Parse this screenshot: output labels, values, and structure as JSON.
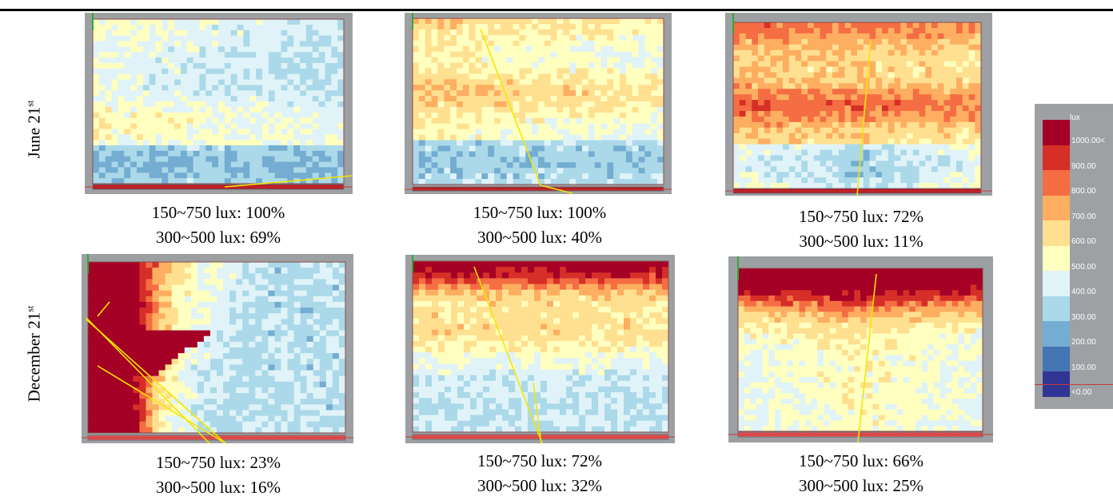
{
  "row_labels": [
    {
      "main": "June 21",
      "sup": "st"
    },
    {
      "main": "December 21",
      "sup": "st"
    }
  ],
  "legend": {
    "unit": "lux",
    "labels": [
      "1000.00<",
      "900.00",
      "800.00",
      "700.00",
      "600.00",
      "500.00",
      "400.00",
      "300.00",
      "200.00",
      "100.00",
      "<0.00"
    ],
    "colors": [
      "#a50026",
      "#d62f27",
      "#f46d43",
      "#fdae61",
      "#fee090",
      "#ffffbf",
      "#e0f3f8",
      "#abd9e9",
      "#74add1",
      "#4575b4",
      "#313695"
    ]
  },
  "chart_data": [
    {
      "type": "heatmap",
      "row": "June 21st",
      "range_150_750": "150~750 lux: 100%",
      "range_300_500": "300~500 lux: 69%"
    },
    {
      "type": "heatmap",
      "row": "June 21st",
      "range_150_750": "150~750 lux: 100%",
      "range_300_500": "300~500 lux: 40%"
    },
    {
      "type": "heatmap",
      "row": "June 21st",
      "range_150_750": "150~750 lux: 72%",
      "range_300_500": "300~500 lux: 11%"
    },
    {
      "type": "heatmap",
      "row": "December 21st",
      "range_150_750": "150~750 lux: 23%",
      "range_300_500": "300~500 lux: 16%"
    },
    {
      "type": "heatmap",
      "row": "December 21st",
      "range_150_750": "150~750 lux: 72%",
      "range_300_500": "300~500 lux: 32%"
    },
    {
      "type": "heatmap",
      "row": "December 21st",
      "range_150_750": "150~750 lux: 66%",
      "range_300_500": "300~500 lux: 25%"
    }
  ]
}
